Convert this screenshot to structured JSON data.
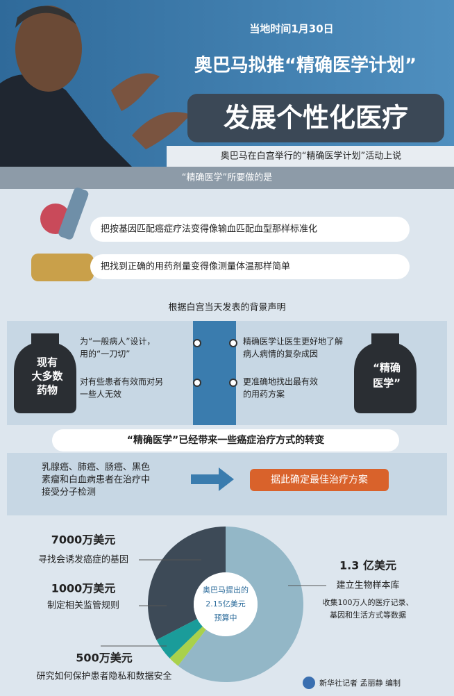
{
  "header": {
    "date": "当地时间1月30日",
    "headline": "奥巴马拟推“精确医学计划”",
    "title": "发展个性化医疗",
    "caption": "奥巴马在白宫举行的“精确医学计划”活动上说"
  },
  "banner": "“精确医学”所要做的是",
  "goals": [
    "把按基因匹配癌症疗法变得像输血匹配血型那样标准化",
    "把找到正确的用药剂量变得像测量体温那样简单"
  ],
  "statement": "根据白宫当天发表的背景声明",
  "left_bottle": [
    "现有",
    "大多数",
    "药物"
  ],
  "left_points": [
    [
      "为“一般病人”设计，",
      "用的“一刀切”"
    ],
    [
      "对有些患者有效而对另",
      "一些人无效"
    ]
  ],
  "right_points": [
    [
      "精确医学让医生更好地了解",
      "病人病情的复杂成因"
    ],
    [
      "更准确地找出最有效",
      "的用药方案"
    ]
  ],
  "right_bottle": [
    "“精确",
    "医学”"
  ],
  "change_banner": "“精确医学”已经带来一些癌症治疗方式的转变",
  "patients": [
    "乳腺癌、肺癌、肠癌、黑色",
    "素瘤和白血病患者在治疗中",
    "接受分子检测"
  ],
  "result": "据此确定最佳治疗方案",
  "chart_data": {
    "type": "pie",
    "categories": [
      "寻找会诱发癌症的基因",
      "制定相关监管规则",
      "研究如何保护患者隐私和数据安全",
      "建立生物样本库"
    ],
    "values": [
      7000,
      1000,
      500,
      13000
    ],
    "value_labels": [
      "7000万美元",
      "1000万美元",
      "500万美元",
      "1.3 亿美元"
    ],
    "colors": [
      "#3d4a57",
      "#1a9c9a",
      "#a9d14c",
      "#93b7c7"
    ],
    "center_text": [
      "奥巴马提出的",
      "2.15亿美元",
      "预算中"
    ],
    "annotation": [
      "收集100万人的医疗记录、",
      "基因和生活方式等数据"
    ]
  },
  "footer": "新华社记者 孟丽静 编制"
}
